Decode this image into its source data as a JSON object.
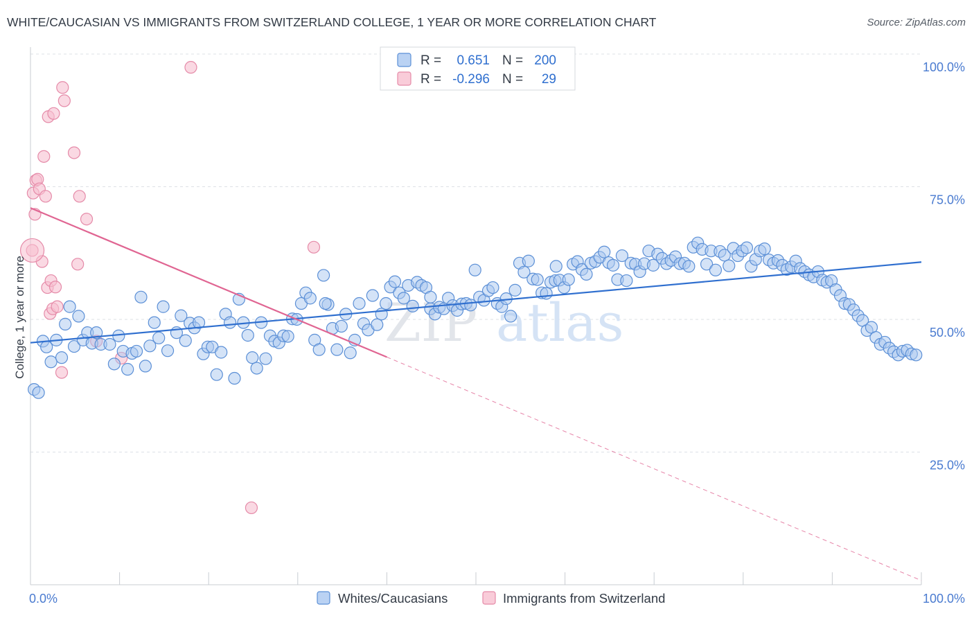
{
  "title": "WHITE/CAUCASIAN VS IMMIGRANTS FROM SWITZERLAND COLLEGE, 1 YEAR OR MORE CORRELATION CHART",
  "source": "Source: ZipAtlas.com",
  "watermark": {
    "zip": "ZIP",
    "atlas": "atlas"
  },
  "colors": {
    "blue_fill": "#a9c7f0",
    "blue_stroke": "#5b8fd6",
    "blue_line": "#2f6fcf",
    "pink_fill": "#f7bfd0",
    "pink_stroke": "#e58aa8",
    "pink_line": "#e06592",
    "tick_text": "#4a7bd0",
    "grid": "#dde1e6"
  },
  "chart_data": {
    "type": "scatter",
    "ylabel": "College, 1 year or more",
    "xlim": [
      0,
      100
    ],
    "ylim": [
      0,
      100
    ],
    "x_ticks": [
      "0.0%",
      "100.0%"
    ],
    "y_ticks": [
      {
        "value": 100,
        "label": "100.0%"
      },
      {
        "value": 75,
        "label": "75.0%"
      },
      {
        "value": 50,
        "label": "50.0%"
      },
      {
        "value": 25,
        "label": "25.0%"
      }
    ],
    "legend_top": [
      {
        "r_label": "R =",
        "r_value": "0.651",
        "n_label": "N =",
        "n_value": "200"
      },
      {
        "r_label": "R =",
        "r_value": "-0.296",
        "n_label": "N =",
        "n_value": "29"
      }
    ],
    "series": [
      {
        "name": "Whites/Caucasians",
        "trend": {
          "x": [
            0,
            100
          ],
          "y": [
            45.6,
            60.8
          ]
        },
        "points": [
          [
            0.4,
            36.8
          ],
          [
            0.9,
            36.2
          ],
          [
            1.4,
            45.9
          ],
          [
            1.8,
            44.8
          ],
          [
            2.3,
            42.0
          ],
          [
            2.9,
            46.1
          ],
          [
            3.5,
            42.8
          ],
          [
            3.9,
            49.1
          ],
          [
            4.4,
            52.4
          ],
          [
            4.9,
            44.9
          ],
          [
            5.4,
            50.6
          ],
          [
            5.9,
            46.1
          ],
          [
            6.4,
            47.5
          ],
          [
            6.9,
            45.5
          ],
          [
            7.4,
            47.5
          ],
          [
            7.9,
            45.3
          ],
          [
            8.9,
            45.3
          ],
          [
            9.4,
            41.6
          ],
          [
            9.9,
            46.9
          ],
          [
            10.4,
            44.0
          ],
          [
            10.9,
            40.6
          ],
          [
            11.4,
            43.6
          ],
          [
            11.9,
            44.0
          ],
          [
            12.4,
            54.2
          ],
          [
            12.9,
            41.2
          ],
          [
            13.4,
            45.0
          ],
          [
            13.9,
            49.4
          ],
          [
            14.4,
            46.5
          ],
          [
            14.9,
            52.4
          ],
          [
            15.4,
            44.1
          ],
          [
            16.4,
            47.5
          ],
          [
            16.9,
            50.7
          ],
          [
            17.4,
            46.0
          ],
          [
            17.9,
            49.3
          ],
          [
            18.4,
            48.4
          ],
          [
            18.9,
            49.4
          ],
          [
            19.4,
            43.5
          ],
          [
            19.9,
            44.8
          ],
          [
            20.4,
            44.8
          ],
          [
            20.9,
            39.6
          ],
          [
            21.4,
            43.8
          ],
          [
            21.9,
            51.0
          ],
          [
            22.4,
            49.4
          ],
          [
            22.9,
            38.9
          ],
          [
            23.4,
            53.8
          ],
          [
            23.9,
            49.4
          ],
          [
            24.4,
            47.0
          ],
          [
            24.9,
            42.8
          ],
          [
            25.4,
            40.8
          ],
          [
            25.9,
            49.4
          ],
          [
            26.4,
            42.6
          ],
          [
            26.9,
            46.9
          ],
          [
            27.4,
            45.9
          ],
          [
            27.9,
            45.6
          ],
          [
            28.4,
            46.9
          ],
          [
            28.9,
            46.8
          ],
          [
            29.4,
            50.1
          ],
          [
            29.9,
            50.0
          ],
          [
            30.4,
            53.0
          ],
          [
            30.9,
            55.0
          ],
          [
            31.4,
            54.0
          ],
          [
            31.9,
            46.1
          ],
          [
            32.4,
            44.3
          ],
          [
            32.9,
            58.3
          ],
          [
            33.4,
            52.8
          ],
          [
            33.9,
            48.3
          ],
          [
            34.4,
            44.3
          ],
          [
            34.9,
            48.7
          ],
          [
            35.4,
            51.0
          ],
          [
            35.9,
            43.7
          ],
          [
            36.4,
            46.1
          ],
          [
            36.9,
            53.0
          ],
          [
            37.4,
            49.2
          ],
          [
            37.9,
            48.0
          ],
          [
            38.4,
            54.5
          ],
          [
            38.9,
            49.0
          ],
          [
            39.4,
            51.0
          ],
          [
            39.9,
            53.0
          ],
          [
            40.4,
            56.1
          ],
          [
            40.9,
            57.1
          ],
          [
            41.4,
            55.0
          ],
          [
            41.9,
            54.0
          ],
          [
            42.4,
            56.4
          ],
          [
            42.9,
            52.5
          ],
          [
            43.4,
            57.0
          ],
          [
            43.9,
            56.4
          ],
          [
            44.4,
            56.0
          ],
          [
            44.9,
            52.0
          ],
          [
            45.4,
            51.0
          ],
          [
            45.9,
            52.3
          ],
          [
            46.4,
            52.0
          ],
          [
            46.9,
            54.0
          ],
          [
            47.4,
            52.6
          ],
          [
            47.9,
            51.7
          ],
          [
            48.4,
            52.9
          ],
          [
            48.9,
            53.0
          ],
          [
            49.4,
            52.7
          ],
          [
            49.9,
            59.3
          ],
          [
            50.4,
            54.2
          ],
          [
            50.9,
            53.6
          ],
          [
            51.4,
            55.4
          ],
          [
            51.9,
            56.0
          ],
          [
            52.4,
            53.0
          ],
          [
            52.9,
            52.4
          ],
          [
            53.4,
            53.9
          ],
          [
            53.9,
            50.6
          ],
          [
            54.4,
            55.5
          ],
          [
            54.9,
            60.6
          ],
          [
            55.4,
            58.9
          ],
          [
            55.9,
            61.0
          ],
          [
            56.4,
            57.6
          ],
          [
            56.9,
            57.5
          ],
          [
            57.4,
            55.0
          ],
          [
            57.9,
            54.9
          ],
          [
            58.4,
            57.0
          ],
          [
            58.9,
            57.3
          ],
          [
            59.4,
            57.4
          ],
          [
            59.9,
            56.0
          ],
          [
            60.4,
            57.5
          ],
          [
            60.9,
            60.4
          ],
          [
            61.4,
            60.9
          ],
          [
            61.9,
            59.4
          ],
          [
            62.4,
            58.5
          ],
          [
            62.9,
            60.6
          ],
          [
            63.4,
            60.9
          ],
          [
            63.9,
            61.7
          ],
          [
            64.4,
            62.7
          ],
          [
            64.9,
            60.7
          ],
          [
            65.4,
            60.2
          ],
          [
            65.9,
            57.5
          ],
          [
            66.4,
            62.0
          ],
          [
            66.9,
            57.3
          ],
          [
            67.4,
            60.6
          ],
          [
            67.9,
            60.4
          ],
          [
            68.4,
            59.0
          ],
          [
            68.9,
            60.5
          ],
          [
            69.4,
            62.9
          ],
          [
            69.9,
            60.2
          ],
          [
            70.4,
            62.3
          ],
          [
            70.9,
            61.5
          ],
          [
            71.4,
            60.5
          ],
          [
            71.9,
            61.1
          ],
          [
            72.4,
            61.8
          ],
          [
            72.9,
            60.5
          ],
          [
            73.4,
            60.6
          ],
          [
            73.9,
            60.0
          ],
          [
            74.4,
            63.6
          ],
          [
            74.9,
            64.4
          ],
          [
            75.4,
            63.2
          ],
          [
            75.9,
            60.4
          ],
          [
            76.4,
            62.9
          ],
          [
            76.9,
            59.3
          ],
          [
            77.4,
            62.8
          ],
          [
            77.9,
            62.1
          ],
          [
            78.4,
            60.1
          ],
          [
            78.9,
            63.4
          ],
          [
            79.4,
            62.0
          ],
          [
            79.9,
            62.9
          ],
          [
            80.4,
            63.5
          ],
          [
            80.9,
            60.0
          ],
          [
            81.4,
            61.3
          ],
          [
            81.9,
            62.9
          ],
          [
            82.4,
            63.3
          ],
          [
            82.9,
            61.2
          ],
          [
            83.4,
            60.6
          ],
          [
            83.9,
            61.1
          ],
          [
            84.4,
            60.2
          ],
          [
            84.9,
            59.4
          ],
          [
            85.4,
            59.9
          ],
          [
            85.9,
            61.0
          ],
          [
            86.4,
            59.6
          ],
          [
            86.9,
            59.0
          ],
          [
            87.4,
            58.4
          ],
          [
            87.9,
            58.0
          ],
          [
            88.4,
            59.0
          ],
          [
            88.9,
            57.4
          ],
          [
            89.4,
            57.0
          ],
          [
            89.9,
            57.3
          ],
          [
            90.4,
            55.6
          ],
          [
            90.9,
            54.5
          ],
          [
            91.4,
            53.0
          ],
          [
            91.9,
            52.8
          ],
          [
            92.4,
            51.8
          ],
          [
            92.9,
            50.7
          ],
          [
            93.4,
            49.8
          ],
          [
            93.9,
            47.9
          ],
          [
            94.4,
            48.5
          ],
          [
            94.9,
            46.6
          ],
          [
            95.4,
            45.3
          ],
          [
            95.9,
            45.7
          ],
          [
            96.4,
            44.6
          ],
          [
            96.9,
            43.9
          ],
          [
            97.4,
            43.3
          ],
          [
            97.9,
            44.0
          ],
          [
            98.4,
            44.2
          ],
          [
            98.9,
            43.5
          ],
          [
            99.4,
            43.3
          ],
          [
            59.0,
            60.0
          ],
          [
            44.9,
            54.2
          ],
          [
            33.1,
            53.0
          ]
        ]
      },
      {
        "name": "Immigrants from Switzerland",
        "trend": {
          "x": [
            0,
            40
          ],
          "y": [
            71.0,
            42.9
          ],
          "dashed_to": [
            100,
            0.8
          ]
        },
        "points": [
          [
            0.2,
            63.0
          ],
          [
            0.3,
            73.8
          ],
          [
            0.5,
            69.8
          ],
          [
            0.6,
            76.2
          ],
          [
            0.8,
            76.4
          ],
          [
            1.0,
            74.6
          ],
          [
            1.3,
            60.9
          ],
          [
            1.5,
            80.7
          ],
          [
            1.7,
            73.2
          ],
          [
            1.9,
            56.0
          ],
          [
            2.0,
            88.2
          ],
          [
            2.2,
            51.1
          ],
          [
            2.3,
            57.3
          ],
          [
            2.5,
            52.0
          ],
          [
            2.6,
            88.8
          ],
          [
            2.8,
            56.1
          ],
          [
            3.0,
            52.4
          ],
          [
            3.6,
            93.7
          ],
          [
            3.8,
            91.2
          ],
          [
            4.9,
            81.4
          ],
          [
            5.3,
            60.4
          ],
          [
            5.5,
            73.2
          ],
          [
            6.3,
            68.9
          ],
          [
            7.4,
            45.9
          ],
          [
            10.2,
            42.7
          ],
          [
            18.0,
            97.5
          ],
          [
            24.8,
            14.5
          ],
          [
            31.8,
            63.6
          ],
          [
            3.5,
            40.0
          ]
        ]
      }
    ],
    "legend_bottom": [
      "Whites/Caucasians",
      "Immigrants from Switzerland"
    ]
  }
}
